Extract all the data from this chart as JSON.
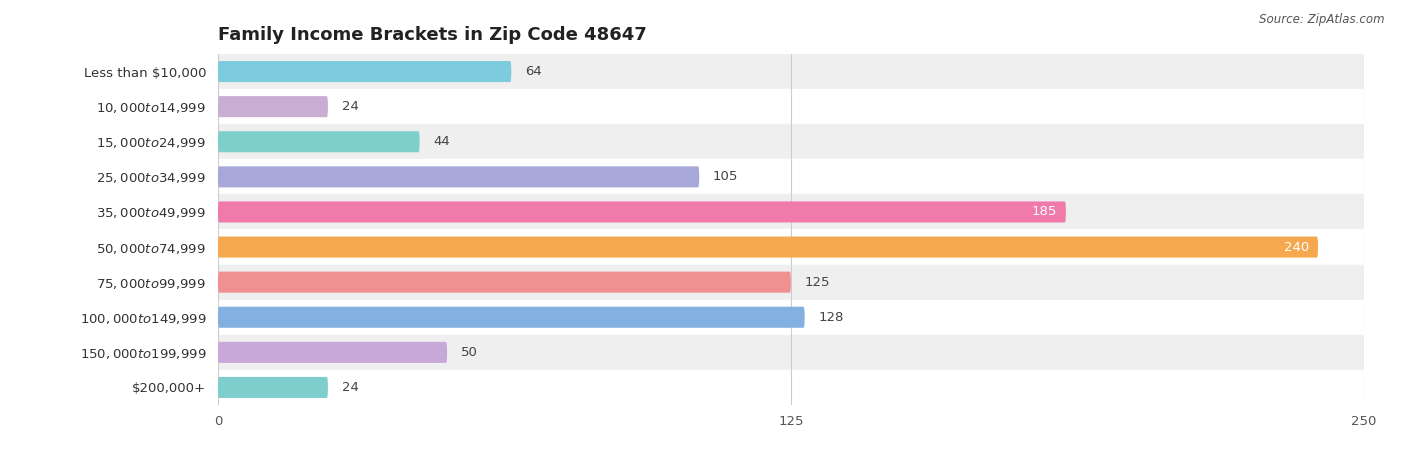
{
  "title": "Family Income Brackets in Zip Code 48647",
  "source": "Source: ZipAtlas.com",
  "categories": [
    "Less than $10,000",
    "$10,000 to $14,999",
    "$15,000 to $24,999",
    "$25,000 to $34,999",
    "$35,000 to $49,999",
    "$50,000 to $74,999",
    "$75,000 to $99,999",
    "$100,000 to $149,999",
    "$150,000 to $199,999",
    "$200,000+"
  ],
  "values": [
    64,
    24,
    44,
    105,
    185,
    240,
    125,
    128,
    50,
    24
  ],
  "bar_colors": [
    "#7ecbde",
    "#c9aed4",
    "#7ecfc9",
    "#a8a8d8",
    "#f07aaa",
    "#f5a84e",
    "#f09090",
    "#82b0e0",
    "#c8a8d8",
    "#7ecece"
  ],
  "xlim": [
    0,
    250
  ],
  "xticks": [
    0,
    125,
    250
  ],
  "background_color": "#ffffff",
  "row_bg_even": "#efefef",
  "row_bg_odd": "#ffffff",
  "title_fontsize": 13,
  "label_fontsize": 9.5,
  "value_fontsize": 9.5,
  "bar_height": 0.6,
  "value_inside_threshold": 150
}
